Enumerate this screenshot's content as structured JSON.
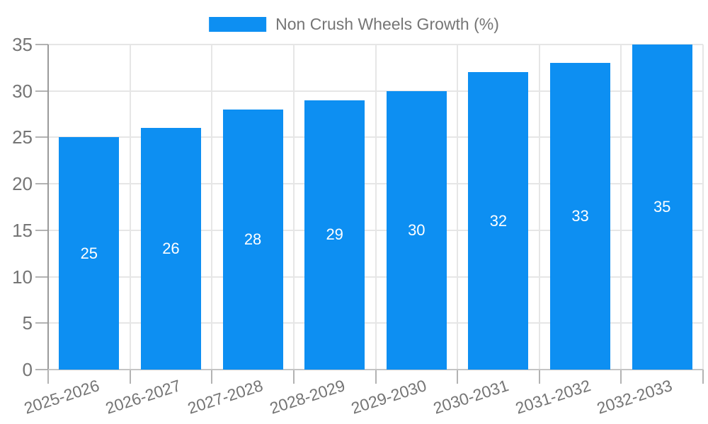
{
  "chart_data": {
    "type": "bar",
    "categories": [
      "2025-2026",
      "2026-2027",
      "2027-2028",
      "2028-2029",
      "2029-2030",
      "2030-2031",
      "2031-2032",
      "2032-2033"
    ],
    "series": [
      {
        "name": "Non Crush Wheels Growth (%)",
        "values": [
          25,
          26,
          28,
          29,
          30,
          32,
          33,
          35
        ]
      }
    ],
    "value_labels": [
      "25",
      "26",
      "28",
      "29",
      "30",
      "32",
      "33",
      "35"
    ],
    "xlabel": "",
    "ylabel": "",
    "ylim": [
      0,
      35
    ],
    "y_ticks": [
      0,
      5,
      10,
      15,
      20,
      25,
      30,
      35
    ],
    "grid": "on",
    "legend_position": "top-center",
    "colors": {
      "bar": "#0d8ff2",
      "axis_text": "#757575",
      "grid_line": "#e6e6e6",
      "axis_line_y": "#9a9a9a",
      "axis_line_x": "#c4c4c4",
      "tick_mark": "#b3b3b3",
      "value_label": "#ffffff",
      "background": "#ffffff"
    }
  }
}
